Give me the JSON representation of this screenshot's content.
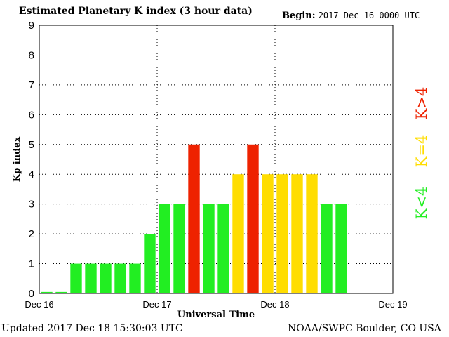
{
  "header": {
    "title": "Estimated Planetary K index (3 hour data)",
    "begin_label": "Begin:",
    "begin_value": "2017 Dec 16 0000 UTC"
  },
  "footer": {
    "updated": "Updated 2017 Dec 18 15:30:03 UTC",
    "credit": "NOAA/SWPC Boulder, CO USA"
  },
  "colors": {
    "low": "#22ee22",
    "moderate": "#ffdd00",
    "high": "#ee2200"
  },
  "legend": {
    "low": "K<4",
    "moderate": "K=4",
    "high": "K>4"
  },
  "chart_data": {
    "type": "bar",
    "ylabel": "Kp index",
    "xlabel": "Universal Time",
    "ylim": [
      0,
      9
    ],
    "yticks": [
      "0",
      "1",
      "2",
      "3",
      "4",
      "5",
      "6",
      "7",
      "8",
      "9"
    ],
    "xticks": [
      "Dec 16",
      "Dec 17",
      "Dec 18",
      "Dec 19"
    ],
    "grid": true,
    "values": [
      0.05,
      0.05,
      1,
      1,
      1,
      1,
      1,
      2,
      3,
      3,
      5,
      3,
      3,
      4,
      5,
      4,
      4,
      4,
      4,
      3,
      3
    ]
  }
}
